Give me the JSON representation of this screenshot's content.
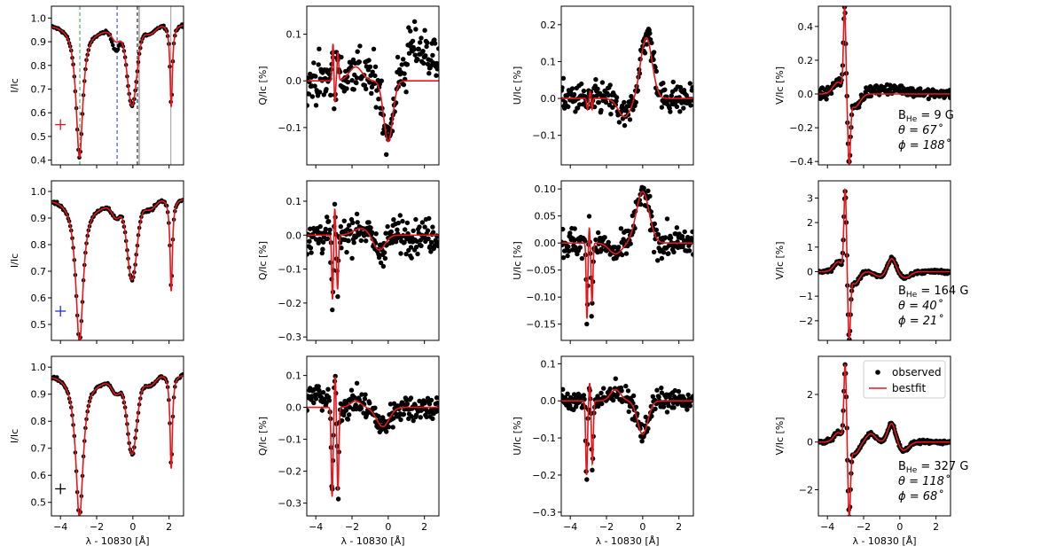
{
  "x_axis": {
    "label": "λ - 10830 [Å]",
    "lim": [
      -4.5,
      2.8
    ],
    "ticks": [
      -4,
      -2,
      0,
      2
    ]
  },
  "columns": [
    {
      "ylabel": "I/Ic"
    },
    {
      "ylabel": "Q/Ic [%]"
    },
    {
      "ylabel": "U/Ic [%]"
    },
    {
      "ylabel": "V/Ic [%]"
    }
  ],
  "legend": {
    "observed": "observed",
    "bestfit": "bestfit"
  },
  "colors": {
    "observed": "#000000",
    "bestfit": "#e8151b"
  },
  "chart_data": [
    {
      "type": "scatter",
      "panel": "row1-I",
      "row": 0,
      "col": 0,
      "ylabel": "I/Ic",
      "ylim": [
        0.38,
        1.05
      ],
      "yticks": [
        0.4,
        0.5,
        0.6,
        0.7,
        0.8,
        0.9,
        1.0
      ],
      "marker": {
        "symbol": "+",
        "color": "#e8151b",
        "x": -4.0,
        "y": 0.55
      },
      "vlines": [
        {
          "x": -2.93,
          "color": "#2a9d3a",
          "style": "dashed"
        },
        {
          "x": -0.87,
          "color": "#2233cc",
          "style": "dashed"
        },
        {
          "x": 0.25,
          "color": "#000000",
          "style": "dashed"
        },
        {
          "x": 0.35,
          "color": "#777777",
          "style": "solid"
        },
        {
          "x": 2.1,
          "color": "#999999",
          "style": "solid"
        }
      ]
    },
    {
      "type": "scatter",
      "panel": "row1-Q",
      "row": 0,
      "col": 1,
      "ylabel": "Q/Ic [%]",
      "ylim": [
        -0.18,
        0.16
      ],
      "yticks": [
        -0.1,
        0.0,
        0.1
      ]
    },
    {
      "type": "scatter",
      "panel": "row1-U",
      "row": 0,
      "col": 2,
      "ylabel": "U/Ic [%]",
      "ylim": [
        -0.18,
        0.25
      ],
      "yticks": [
        -0.1,
        0.0,
        0.1,
        0.2
      ]
    },
    {
      "type": "scatter",
      "panel": "row1-V",
      "row": 0,
      "col": 3,
      "ylabel": "V/Ic [%]",
      "ylim": [
        -0.42,
        0.52
      ],
      "yticks": [
        -0.4,
        -0.2,
        0.0,
        0.2,
        0.4
      ],
      "annotations": {
        "b": "B",
        "b_sub": "He",
        "b_val": " = 9 G",
        "theta": "θ = 67˚",
        "phi": "ϕ = 188˚"
      }
    },
    {
      "type": "scatter",
      "panel": "row2-I",
      "row": 1,
      "col": 0,
      "ylabel": "I/Ic",
      "ylim": [
        0.44,
        1.04
      ],
      "yticks": [
        0.5,
        0.6,
        0.7,
        0.8,
        0.9,
        1.0
      ],
      "marker": {
        "symbol": "+",
        "color": "#2233cc",
        "x": -4.0,
        "y": 0.55
      }
    },
    {
      "type": "scatter",
      "panel": "row2-Q",
      "row": 1,
      "col": 1,
      "ylabel": "Q/Ic [%]",
      "ylim": [
        -0.31,
        0.16
      ],
      "yticks": [
        -0.3,
        -0.2,
        -0.1,
        0.0,
        0.1
      ]
    },
    {
      "type": "scatter",
      "panel": "row2-U",
      "row": 1,
      "col": 2,
      "ylabel": "U/Ic [%]",
      "ylim": [
        -0.18,
        0.115
      ],
      "yticks": [
        -0.15,
        -0.1,
        -0.05,
        0.0,
        0.05,
        0.1
      ]
    },
    {
      "type": "scatter",
      "panel": "row2-V",
      "row": 1,
      "col": 3,
      "ylabel": "V/Ic [%]",
      "ylim": [
        -2.8,
        3.7
      ],
      "yticks": [
        -2,
        -1,
        0,
        1,
        2,
        3
      ],
      "annotations": {
        "b": "B",
        "b_sub": "He",
        "b_val": " = 164 G",
        "theta": "θ = 40˚",
        "phi": "ϕ = 21˚"
      }
    },
    {
      "type": "scatter",
      "panel": "row3-I",
      "row": 2,
      "col": 0,
      "ylabel": "I/Ic",
      "ylim": [
        0.45,
        1.04
      ],
      "yticks": [
        0.5,
        0.6,
        0.7,
        0.8,
        0.9,
        1.0
      ],
      "marker": {
        "symbol": "+",
        "color": "#000000",
        "x": -4.0,
        "y": 0.55
      }
    },
    {
      "type": "scatter",
      "panel": "row3-Q",
      "row": 2,
      "col": 1,
      "ylabel": "Q/Ic [%]",
      "ylim": [
        -0.34,
        0.16
      ],
      "yticks": [
        -0.3,
        -0.2,
        -0.1,
        0.0,
        0.1
      ]
    },
    {
      "type": "scatter",
      "panel": "row3-U",
      "row": 2,
      "col": 2,
      "ylabel": "U/Ic [%]",
      "ylim": [
        -0.31,
        0.12
      ],
      "yticks": [
        -0.3,
        -0.2,
        -0.1,
        0.0,
        0.1
      ]
    },
    {
      "type": "scatter",
      "panel": "row3-V",
      "row": 2,
      "col": 3,
      "ylabel": "V/Ic [%]",
      "ylim": [
        -3.1,
        3.6
      ],
      "yticks": [
        -2,
        0,
        2
      ],
      "annotations": {
        "b": "B",
        "b_sub": "He",
        "b_val": " = 327 G",
        "theta": "θ = 118˚",
        "phi": "ϕ = 68˚"
      },
      "legend": true
    }
  ]
}
